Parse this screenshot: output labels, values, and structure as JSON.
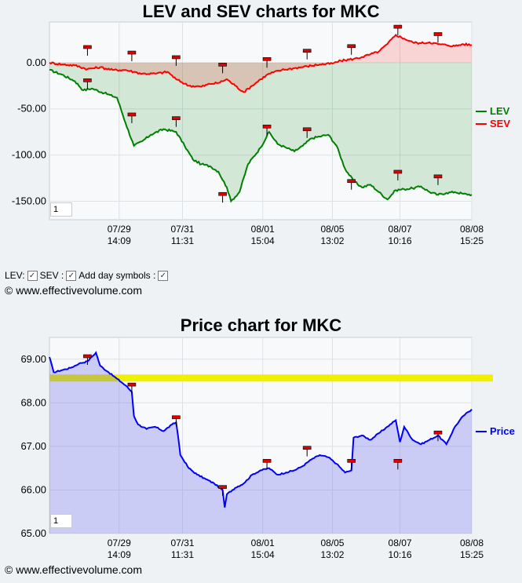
{
  "top_title": "LEV and SEV charts for MKC",
  "bottom_title": "Price chart for MKC",
  "controls": {
    "lev_label": "LEV:",
    "sev_label": "SEV :",
    "day_label": "Add day symbols :"
  },
  "copyright": "© www.effectivevolume.com",
  "zoom_box": "1",
  "colors": {
    "lev": "#008000",
    "sev": "#ff0000",
    "price": "#0000ff",
    "band": "#f0f000"
  },
  "chart_data": [
    {
      "type": "area",
      "title": "LEV and SEV charts for MKC",
      "x_ticks": [
        {
          "date": "07/29",
          "time": "14:09"
        },
        {
          "date": "07/31",
          "time": "11:31"
        },
        {
          "date": "08/01",
          "time": "15:04"
        },
        {
          "date": "08/05",
          "time": "13:02"
        },
        {
          "date": "08/07",
          "time": "10:16"
        },
        {
          "date": "08/08",
          "time": "15:25"
        }
      ],
      "y_ticks": [
        "0.00",
        "-50.00",
        "-100.00",
        "-150.00"
      ],
      "ylim": [
        -170,
        44
      ],
      "x_index_range": [
        0,
        100
      ],
      "x_tick_index": [
        16.5,
        31.5,
        50.5,
        67,
        83,
        100
      ],
      "legend_position": "right",
      "series": [
        {
          "name": "LEV",
          "points": [
            [
              0,
              -8
            ],
            [
              3,
              -13
            ],
            [
              6,
              -20
            ],
            [
              8,
              -30
            ],
            [
              10,
              -28
            ],
            [
              13,
              -33
            ],
            [
              16,
              -38
            ],
            [
              18,
              -65
            ],
            [
              20,
              -90
            ],
            [
              22,
              -85
            ],
            [
              24,
              -78
            ],
            [
              27,
              -72
            ],
            [
              30,
              -75
            ],
            [
              32,
              -90
            ],
            [
              34,
              -105
            ],
            [
              36,
              -110
            ],
            [
              38,
              -112
            ],
            [
              40,
              -118
            ],
            [
              42,
              -135
            ],
            [
              43,
              -150
            ],
            [
              45,
              -140
            ],
            [
              47,
              -110
            ],
            [
              50,
              -92
            ],
            [
              52,
              -75
            ],
            [
              54,
              -88
            ],
            [
              56,
              -92
            ],
            [
              58,
              -96
            ],
            [
              60,
              -90
            ],
            [
              62,
              -82
            ],
            [
              64,
              -80
            ],
            [
              66,
              -78
            ],
            [
              68,
              -90
            ],
            [
              70,
              -115
            ],
            [
              72,
              -128
            ],
            [
              74,
              -135
            ],
            [
              76,
              -132
            ],
            [
              78,
              -140
            ],
            [
              80,
              -148
            ],
            [
              82,
              -138
            ],
            [
              84,
              -137
            ],
            [
              86,
              -136
            ],
            [
              88,
              -134
            ],
            [
              90,
              -140
            ],
            [
              92,
              -143
            ],
            [
              94,
              -141
            ],
            [
              96,
              -140
            ],
            [
              98,
              -142
            ],
            [
              100,
              -143
            ]
          ],
          "day_markers": [
            [
              9,
              -20
            ],
            [
              19.5,
              -57
            ],
            [
              30,
              -61
            ],
            [
              41,
              -143
            ],
            [
              51.5,
              -70
            ],
            [
              61,
              -73
            ],
            [
              71.5,
              -129
            ],
            [
              82.5,
              -119
            ],
            [
              92,
              -124
            ]
          ]
        },
        {
          "name": "SEV",
          "points": [
            [
              0,
              0
            ],
            [
              3,
              -2
            ],
            [
              6,
              -3
            ],
            [
              9,
              -7
            ],
            [
              12,
              -5
            ],
            [
              15,
              -8
            ],
            [
              18,
              -8
            ],
            [
              20,
              -10
            ],
            [
              22,
              -12
            ],
            [
              25,
              -12
            ],
            [
              28,
              -10
            ],
            [
              30,
              -18
            ],
            [
              33,
              -25
            ],
            [
              36,
              -26
            ],
            [
              38,
              -23
            ],
            [
              40,
              -22
            ],
            [
              42,
              -18
            ],
            [
              44,
              -25
            ],
            [
              46,
              -32
            ],
            [
              48,
              -25
            ],
            [
              50,
              -18
            ],
            [
              52,
              -12
            ],
            [
              55,
              -8
            ],
            [
              58,
              -6
            ],
            [
              61,
              -4
            ],
            [
              64,
              -2
            ],
            [
              67,
              -1
            ],
            [
              69,
              2
            ],
            [
              72,
              4
            ],
            [
              74,
              6
            ],
            [
              76,
              9
            ],
            [
              78,
              12
            ],
            [
              80,
              20
            ],
            [
              82,
              30
            ],
            [
              84,
              26
            ],
            [
              86,
              22
            ],
            [
              88,
              21
            ],
            [
              90,
              22
            ],
            [
              92,
              20
            ],
            [
              94,
              19
            ],
            [
              96,
              18
            ],
            [
              98,
              20
            ],
            [
              100,
              19
            ]
          ],
          "day_markers": [
            [
              9,
              16
            ],
            [
              19.5,
              10
            ],
            [
              30,
              5
            ],
            [
              41,
              -3
            ],
            [
              51.5,
              3
            ],
            [
              61,
              12
            ],
            [
              71.5,
              17
            ],
            [
              82.5,
              38
            ],
            [
              92,
              30
            ]
          ]
        }
      ]
    },
    {
      "type": "line",
      "title": "Price chart for MKC",
      "x_ticks": [
        {
          "date": "07/29",
          "time": "14:09"
        },
        {
          "date": "07/31",
          "time": "11:31"
        },
        {
          "date": "08/01",
          "time": "15:04"
        },
        {
          "date": "08/05",
          "time": "13:02"
        },
        {
          "date": "08/07",
          "time": "10:16"
        },
        {
          "date": "08/08",
          "time": "15:25"
        }
      ],
      "y_ticks": [
        "69.00",
        "68.00",
        "67.00",
        "66.00",
        "65.00"
      ],
      "ylim": [
        65.0,
        69.5
      ],
      "x_index_range": [
        0,
        100
      ],
      "x_tick_index": [
        16.5,
        31.5,
        50.5,
        67,
        83,
        100
      ],
      "band": [
        68.5,
        68.65
      ],
      "legend_position": "right",
      "series": [
        {
          "name": "Price",
          "points": [
            [
              0,
              69.05
            ],
            [
              1,
              68.7
            ],
            [
              3,
              68.75
            ],
            [
              5,
              68.8
            ],
            [
              7,
              68.9
            ],
            [
              9,
              68.95
            ],
            [
              10,
              69.05
            ],
            [
              11,
              69.15
            ],
            [
              12,
              68.85
            ],
            [
              14,
              68.7
            ],
            [
              16,
              68.55
            ],
            [
              18,
              68.4
            ],
            [
              19.5,
              68.25
            ],
            [
              20,
              67.7
            ],
            [
              21,
              67.5
            ],
            [
              23,
              67.4
            ],
            [
              25,
              67.45
            ],
            [
              27,
              67.35
            ],
            [
              29,
              67.5
            ],
            [
              30,
              67.55
            ],
            [
              30.5,
              67.2
            ],
            [
              31,
              66.8
            ],
            [
              33,
              66.5
            ],
            [
              35,
              66.35
            ],
            [
              37,
              66.25
            ],
            [
              39,
              66.15
            ],
            [
              41,
              66.0
            ],
            [
              41.5,
              65.6
            ],
            [
              42,
              65.9
            ],
            [
              44,
              66.05
            ],
            [
              46,
              66.15
            ],
            [
              48,
              66.35
            ],
            [
              50,
              66.45
            ],
            [
              52,
              66.5
            ],
            [
              54,
              66.35
            ],
            [
              56,
              66.4
            ],
            [
              58,
              66.45
            ],
            [
              60,
              66.55
            ],
            [
              62,
              66.7
            ],
            [
              64,
              66.8
            ],
            [
              66,
              66.75
            ],
            [
              68,
              66.6
            ],
            [
              70,
              66.4
            ],
            [
              71.5,
              66.45
            ],
            [
              72,
              67.2
            ],
            [
              74,
              67.25
            ],
            [
              76,
              67.15
            ],
            [
              78,
              67.3
            ],
            [
              80,
              67.45
            ],
            [
              82,
              67.6
            ],
            [
              83,
              67.1
            ],
            [
              84,
              67.45
            ],
            [
              86,
              67.15
            ],
            [
              88,
              67.05
            ],
            [
              90,
              67.15
            ],
            [
              92,
              67.25
            ],
            [
              94,
              67.05
            ],
            [
              96,
              67.45
            ],
            [
              98,
              67.7
            ],
            [
              100,
              67.85
            ]
          ],
          "day_markers": [
            [
              9,
              69.05
            ],
            [
              19.5,
              68.4
            ],
            [
              30,
              67.65
            ],
            [
              41,
              66.05
            ],
            [
              51.5,
              66.65
            ],
            [
              61,
              66.95
            ],
            [
              71.5,
              66.65
            ],
            [
              82.5,
              66.65
            ],
            [
              92,
              67.3
            ]
          ]
        }
      ]
    }
  ]
}
